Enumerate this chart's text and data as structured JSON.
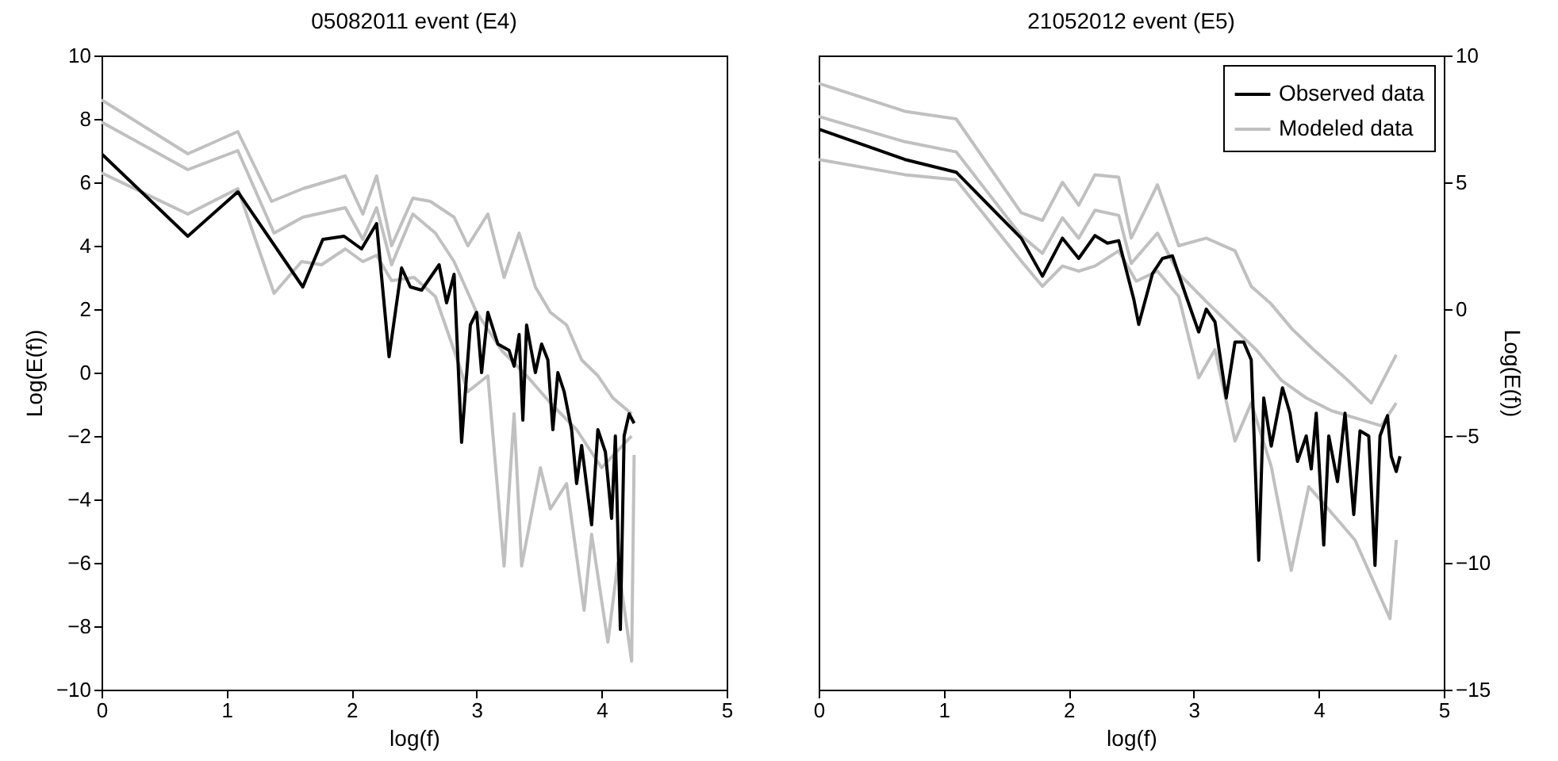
{
  "chart_data": [
    {
      "type": "line",
      "title": "05082011  event (E4)",
      "xlabel": "log(f)",
      "ylabel": "Log(E(f))",
      "xlim": [
        0,
        5
      ],
      "xticks": [
        0,
        1,
        2,
        3,
        4,
        5
      ],
      "ylim": [
        -10,
        10
      ],
      "yticks": [
        -10,
        -8,
        -6,
        -4,
        -2,
        0,
        2,
        4,
        6,
        8,
        10
      ],
      "grid": false,
      "line_style": "solid",
      "series": [
        {
          "color": "#000000",
          "x": [
            0,
            0.69,
            1.09,
            1.61,
            1.77,
            1.94,
            2.08,
            2.2,
            2.3,
            2.4,
            2.47,
            2.56,
            2.7,
            2.76,
            2.82,
            2.88,
            2.95,
            3.0,
            3.04,
            3.09,
            3.17,
            3.26,
            3.3,
            3.34,
            3.37,
            3.4,
            3.47,
            3.52,
            3.57,
            3.61,
            3.65,
            3.7,
            3.76,
            3.8,
            3.84,
            3.92,
            3.97,
            4.03,
            4.08,
            4.11,
            4.15,
            4.18,
            4.22,
            4.26
          ],
          "values": [
            6.9,
            4.3,
            5.7,
            2.7,
            4.2,
            4.3,
            3.9,
            4.7,
            0.5,
            3.3,
            2.7,
            2.6,
            3.4,
            2.2,
            3.1,
            -2.2,
            1.5,
            1.9,
            0.0,
            1.9,
            0.9,
            0.7,
            0.2,
            1.2,
            -1.5,
            1.5,
            0.0,
            0.9,
            0.4,
            -1.8,
            0.0,
            -0.6,
            -1.8,
            -3.5,
            -2.3,
            -4.8,
            -1.8,
            -2.5,
            -4.6,
            -2.0,
            -8.1,
            -2.0,
            -1.3,
            -1.6
          ]
        },
        {
          "color": "#c0c0c0",
          "x": [
            0,
            0.69,
            1.09,
            1.36,
            1.61,
            1.95,
            2.09,
            2.2,
            2.32,
            2.49,
            2.63,
            2.82,
            2.93,
            3.09,
            3.22,
            3.34,
            3.47,
            3.59,
            3.72,
            3.84,
            3.97,
            4.09,
            4.24
          ],
          "values": [
            8.6,
            6.9,
            7.6,
            5.4,
            5.8,
            6.2,
            5.0,
            6.2,
            4.0,
            5.5,
            5.4,
            4.9,
            4.0,
            5.0,
            3.0,
            4.4,
            2.7,
            1.9,
            1.5,
            0.4,
            -0.1,
            -0.8,
            -1.3
          ]
        },
        {
          "color": "#c0c0c0",
          "x": [
            0,
            0.69,
            1.09,
            1.38,
            1.61,
            1.95,
            2.09,
            2.2,
            2.32,
            2.49,
            2.67,
            2.82,
            3.0,
            3.2,
            3.4,
            3.6,
            3.8,
            4.0,
            4.24
          ],
          "values": [
            7.9,
            6.4,
            7.0,
            4.4,
            4.9,
            5.2,
            4.2,
            5.2,
            3.4,
            5.0,
            4.4,
            3.5,
            1.9,
            0.7,
            -0.1,
            -1.0,
            -1.8,
            -3.0,
            -2.0
          ]
        },
        {
          "color": "#c0c0c0",
          "x": [
            0,
            0.69,
            1.09,
            1.38,
            1.6,
            1.76,
            1.95,
            2.09,
            2.2,
            2.32,
            2.5,
            2.67,
            2.82,
            2.93,
            3.09,
            3.22,
            3.3,
            3.36,
            3.51,
            3.59,
            3.72,
            3.86,
            3.92,
            4.05,
            4.13,
            4.24,
            4.26
          ],
          "values": [
            6.3,
            5.0,
            5.8,
            2.5,
            3.5,
            3.4,
            3.9,
            3.5,
            3.7,
            2.9,
            3.0,
            2.4,
            0.7,
            -0.6,
            -0.1,
            -6.1,
            -1.3,
            -6.1,
            -3.0,
            -4.3,
            -3.5,
            -7.5,
            -5.1,
            -8.5,
            -6.0,
            -9.1,
            -2.6
          ]
        }
      ]
    },
    {
      "type": "line",
      "title": "21052012  event (E5)",
      "xlabel": "log(f)",
      "ylabel": "Log(E(f))",
      "xlim": [
        0,
        5
      ],
      "xticks": [
        0,
        1,
        2,
        3,
        4,
        5
      ],
      "ylim": [
        -15,
        10
      ],
      "yticks": [
        -15,
        -10,
        -5,
        0,
        5,
        10
      ],
      "grid": false,
      "legend": "top right",
      "line_style": "solid",
      "series": [
        {
          "name": "Observed data",
          "color": "#000000",
          "x": [
            0,
            0.69,
            1.1,
            1.46,
            1.62,
            1.79,
            1.95,
            2.08,
            2.21,
            2.31,
            2.4,
            2.52,
            2.56,
            2.67,
            2.75,
            2.83,
            2.94,
            3.04,
            3.1,
            3.17,
            3.26,
            3.33,
            3.4,
            3.46,
            3.52,
            3.56,
            3.62,
            3.71,
            3.77,
            3.83,
            3.9,
            3.94,
            3.98,
            4.04,
            4.08,
            4.15,
            4.21,
            4.28,
            4.33,
            4.4,
            4.45,
            4.49,
            4.55,
            4.58,
            4.62,
            4.65
          ],
          "values": [
            7.1,
            5.9,
            5.4,
            3.6,
            2.8,
            1.3,
            2.8,
            2.0,
            2.9,
            2.6,
            2.7,
            0.4,
            -0.6,
            1.4,
            2.0,
            2.1,
            0.5,
            -0.9,
            0.0,
            -0.5,
            -3.5,
            -1.3,
            -1.3,
            -2.0,
            -9.9,
            -3.5,
            -5.4,
            -3.1,
            -4.1,
            -6.0,
            -5.0,
            -6.3,
            -4.1,
            -9.3,
            -5.0,
            -6.8,
            -4.1,
            -8.1,
            -4.8,
            -5.0,
            -10.1,
            -5.0,
            -4.2,
            -5.8,
            -6.4,
            -5.8
          ]
        },
        {
          "name": "Modeled data",
          "color": "#c0c0c0",
          "x": [
            0,
            0.69,
            1.1,
            1.62,
            1.79,
            1.95,
            2.08,
            2.21,
            2.4,
            2.5,
            2.71,
            2.88,
            3.1,
            3.33,
            3.46,
            3.62,
            3.79,
            3.96,
            4.21,
            4.42,
            4.62
          ],
          "values": [
            8.9,
            7.8,
            7.5,
            3.8,
            3.5,
            5.0,
            4.1,
            5.3,
            5.2,
            2.8,
            4.9,
            2.5,
            2.8,
            2.3,
            0.9,
            0.2,
            -0.8,
            -1.6,
            -2.7,
            -3.7,
            -1.8
          ]
        },
        {
          "color": "#c0c0c0",
          "x": [
            0,
            0.69,
            1.1,
            1.62,
            1.79,
            1.95,
            2.08,
            2.21,
            2.4,
            2.5,
            2.71,
            2.88,
            3.1,
            3.33,
            3.5,
            3.7,
            3.9,
            4.1,
            4.3,
            4.5,
            4.62
          ],
          "values": [
            7.6,
            6.6,
            6.2,
            2.9,
            2.2,
            3.6,
            2.8,
            3.9,
            3.7,
            1.8,
            3.0,
            1.4,
            0.3,
            -0.8,
            -1.6,
            -2.8,
            -3.5,
            -4.0,
            -4.3,
            -4.6,
            -3.7
          ]
        },
        {
          "color": "#c0c0c0",
          "x": [
            0,
            0.69,
            1.1,
            1.62,
            1.79,
            1.95,
            2.08,
            2.21,
            2.4,
            2.54,
            2.71,
            2.88,
            3.04,
            3.17,
            3.33,
            3.46,
            3.62,
            3.78,
            3.92,
            4.08,
            4.29,
            4.57,
            4.62
          ],
          "values": [
            5.9,
            5.3,
            5.1,
            1.9,
            0.9,
            1.7,
            1.5,
            1.7,
            2.3,
            1.1,
            1.5,
            0.5,
            -2.7,
            -1.6,
            -5.2,
            -3.7,
            -6.2,
            -10.3,
            -7.0,
            -7.9,
            -9.1,
            -12.2,
            -9.1
          ]
        }
      ]
    }
  ]
}
